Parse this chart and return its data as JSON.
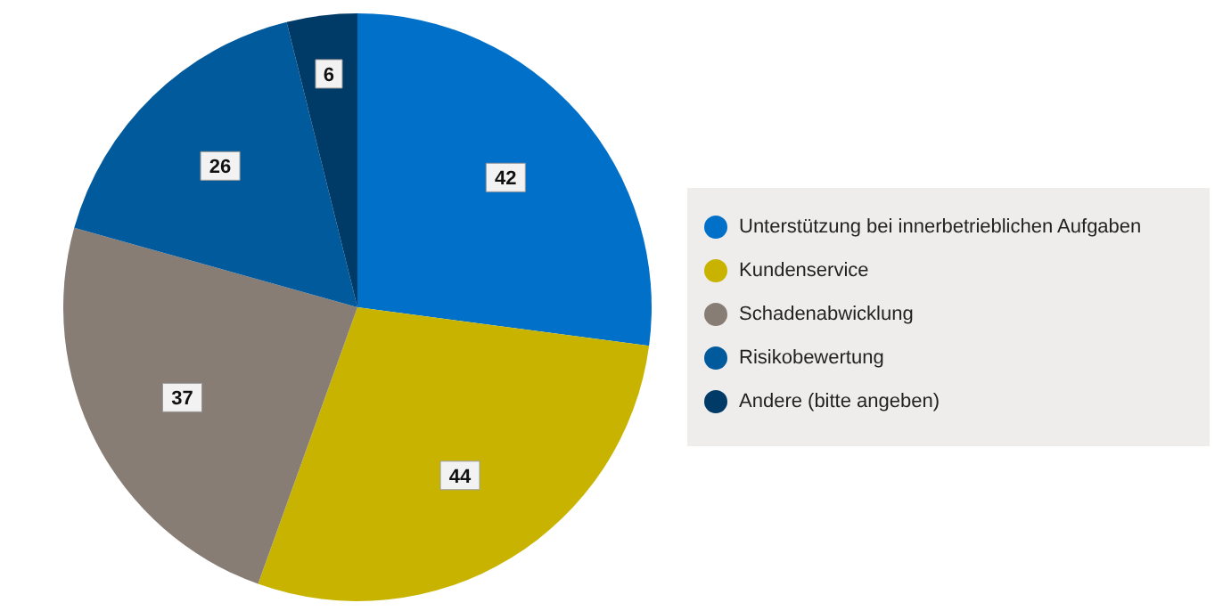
{
  "chart_data": {
    "type": "pie",
    "categories": [
      "Unterstützung bei innerbetrieblichen Aufgaben",
      "Kundenservice",
      "Schadenabwicklung",
      "Risikobewertung",
      "Andere (bitte angeben)"
    ],
    "values": [
      42,
      44,
      37,
      26,
      6
    ],
    "colors": [
      "#0070c9",
      "#c8b400",
      "#887d75",
      "#005a9c",
      "#003a66"
    ],
    "data_labels": true,
    "legend": "right"
  }
}
